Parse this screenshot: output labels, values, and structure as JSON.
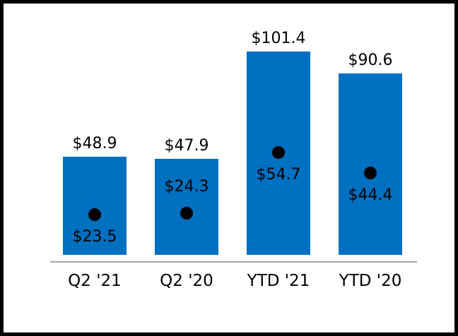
{
  "figure": {
    "background_color": "#ffffff",
    "frame_color": "#000000",
    "axis_line_color": "#a6a6a6"
  },
  "chart_data": {
    "type": "bar",
    "title": "",
    "xlabel": "",
    "ylabel": "",
    "categories": [
      "Q2 '21",
      "Q2 '20",
      "YTD '21",
      "YTD '20"
    ],
    "series": [
      {
        "name": "bar-values",
        "type": "bar",
        "color": "#0070C0",
        "values": [
          48.9,
          47.9,
          101.4,
          90.6
        ],
        "labels": [
          "$48.9",
          "$47.9",
          "$101.4",
          "$90.6"
        ]
      },
      {
        "name": "dot-values",
        "type": "scatter",
        "color": "#000000",
        "values": [
          23.5,
          24.3,
          54.7,
          44.4
        ],
        "labels": [
          "$23.5",
          "$24.3",
          "$54.7",
          "$44.4"
        ],
        "label_positions": [
          "below",
          "above",
          "below",
          "below"
        ]
      }
    ],
    "ylim": [
      0,
      110
    ],
    "grid": false,
    "legend": false,
    "value_prefix": "$"
  }
}
